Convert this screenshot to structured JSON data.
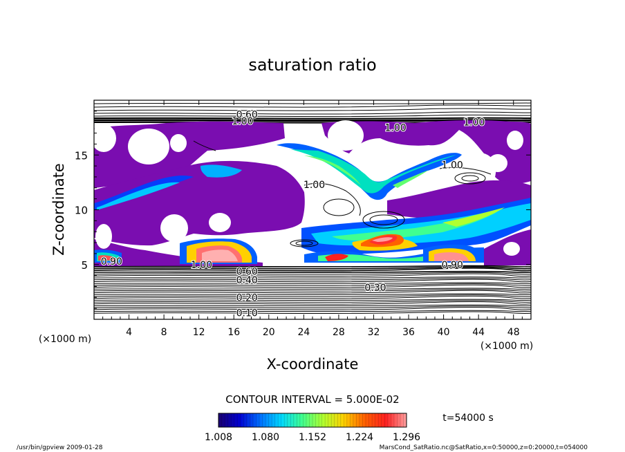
{
  "chart_data": {
    "type": "heatmap",
    "title": "saturation ratio",
    "xlabel": "X-coordinate",
    "ylabel": "Z-coordinate",
    "x_unit": "(×1000 m)",
    "y_unit": "(×1000 m)",
    "xlim": [
      0,
      50
    ],
    "ylim": [
      0,
      20
    ],
    "x_ticks": [
      4,
      8,
      12,
      16,
      20,
      24,
      28,
      32,
      36,
      40,
      44,
      48
    ],
    "y_ticks": [
      5,
      10,
      15
    ],
    "contour_interval_text": "CONTOUR INTERVAL = 5.000E-02",
    "contour_labels": [
      {
        "text": "0.60",
        "x": 17.5,
        "z": 18.7
      },
      {
        "text": "1.00",
        "x": 17.0,
        "z": 18.1
      },
      {
        "text": "1.00",
        "x": 34.5,
        "z": 17.5
      },
      {
        "text": "1.00",
        "x": 43.5,
        "z": 18.0
      },
      {
        "text": "1.00",
        "x": 41.0,
        "z": 14.1
      },
      {
        "text": "1.00",
        "x": 25.2,
        "z": 12.3
      },
      {
        "text": "0.90",
        "x": 2.0,
        "z": 5.3
      },
      {
        "text": "1.00",
        "x": 12.3,
        "z": 5.0
      },
      {
        "text": "0.90",
        "x": 41.0,
        "z": 5.0
      },
      {
        "text": "0.60",
        "x": 17.5,
        "z": 4.4
      },
      {
        "text": "0.40",
        "x": 17.5,
        "z": 3.6
      },
      {
        "text": "0.30",
        "x": 32.2,
        "z": 2.9
      },
      {
        "text": "0.20",
        "x": 17.5,
        "z": 2.0
      },
      {
        "text": "0.10",
        "x": 17.5,
        "z": 0.6
      }
    ],
    "colorbar": {
      "ticks": [
        "1.008",
        "1.080",
        "1.152",
        "1.224",
        "1.296"
      ],
      "range": [
        1.008,
        1.296
      ],
      "colors": [
        "#1a0070",
        "#0000d0",
        "#0070ff",
        "#00d8ff",
        "#40ff90",
        "#b0ff30",
        "#ffd000",
        "#ff6000",
        "#ff2020",
        "#ffa0a0"
      ]
    },
    "time_label": "t=54000 s"
  },
  "footer": {
    "left": "/usr/bin/gpview  2009-01-28",
    "right": "MarsCond_SatRatio.nc@SatRatio,x=0:50000,z=0:20000,t=054000"
  }
}
